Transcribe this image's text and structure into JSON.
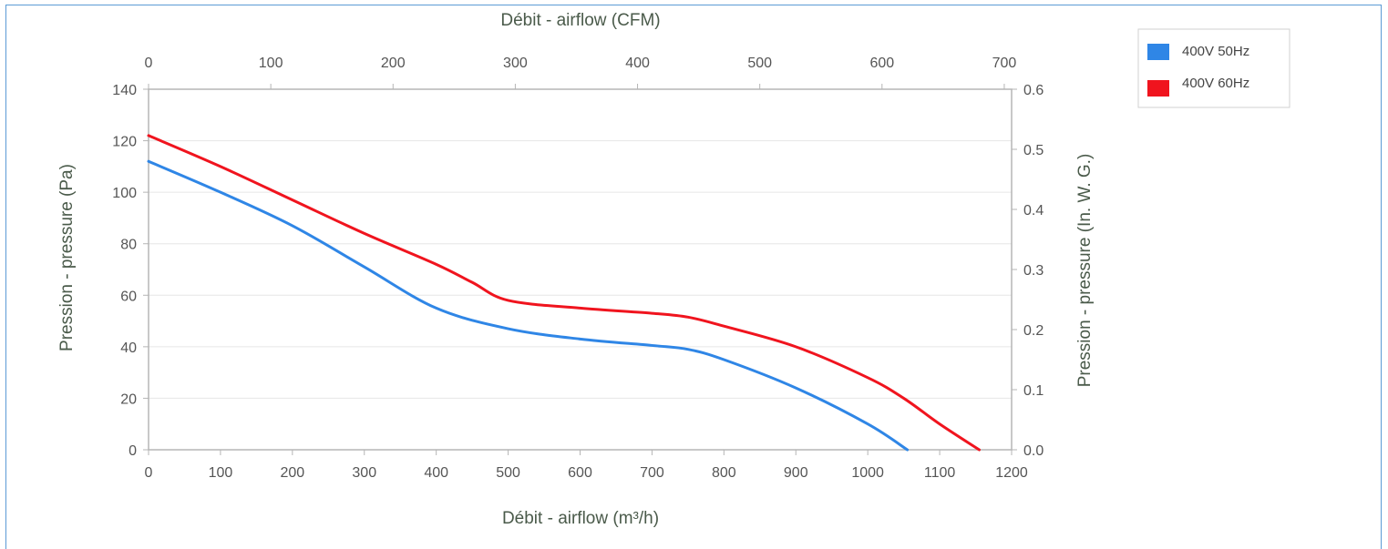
{
  "chart_data": {
    "type": "line",
    "x_bottom": {
      "label": "Débit - airflow (m³/h)",
      "range": [
        0,
        1200
      ],
      "ticks": [
        0,
        100,
        200,
        300,
        400,
        500,
        600,
        700,
        800,
        900,
        1000,
        1100,
        1200
      ]
    },
    "x_top": {
      "label": "Débit - airflow (CFM)",
      "range": [
        0,
        706
      ],
      "ticks": [
        0,
        100,
        200,
        300,
        400,
        500,
        600,
        700
      ]
    },
    "y_left": {
      "label": "Pression - pressure (Pa)",
      "range": [
        0,
        140
      ],
      "ticks": [
        0,
        20,
        40,
        60,
        80,
        100,
        120,
        140
      ]
    },
    "y_right": {
      "label": "Pression - pressure (In. W. G.)",
      "range": [
        0,
        0.6
      ],
      "ticks": [
        "0.0",
        "0.1",
        "0.2",
        "0.3",
        "0.4",
        "0.5",
        "0.6"
      ]
    },
    "grid": true,
    "legend_position": "top-right",
    "series": [
      {
        "name": "400V 50Hz",
        "color": "#2f86e6",
        "x": [
          0,
          100,
          200,
          300,
          400,
          500,
          600,
          700,
          750,
          800,
          900,
          1000,
          1055
        ],
        "y": [
          112,
          100,
          87,
          71,
          55,
          47,
          43,
          40.5,
          39,
          35,
          24,
          10,
          0
        ]
      },
      {
        "name": "400V 60Hz",
        "color": "#f0141e",
        "x": [
          0,
          100,
          200,
          300,
          400,
          450,
          500,
          600,
          700,
          750,
          800,
          900,
          1000,
          1050,
          1100,
          1155
        ],
        "y": [
          122,
          110,
          97,
          84,
          72,
          65,
          58,
          55,
          53,
          51.5,
          48,
          40,
          28,
          20,
          10,
          0
        ]
      }
    ]
  }
}
